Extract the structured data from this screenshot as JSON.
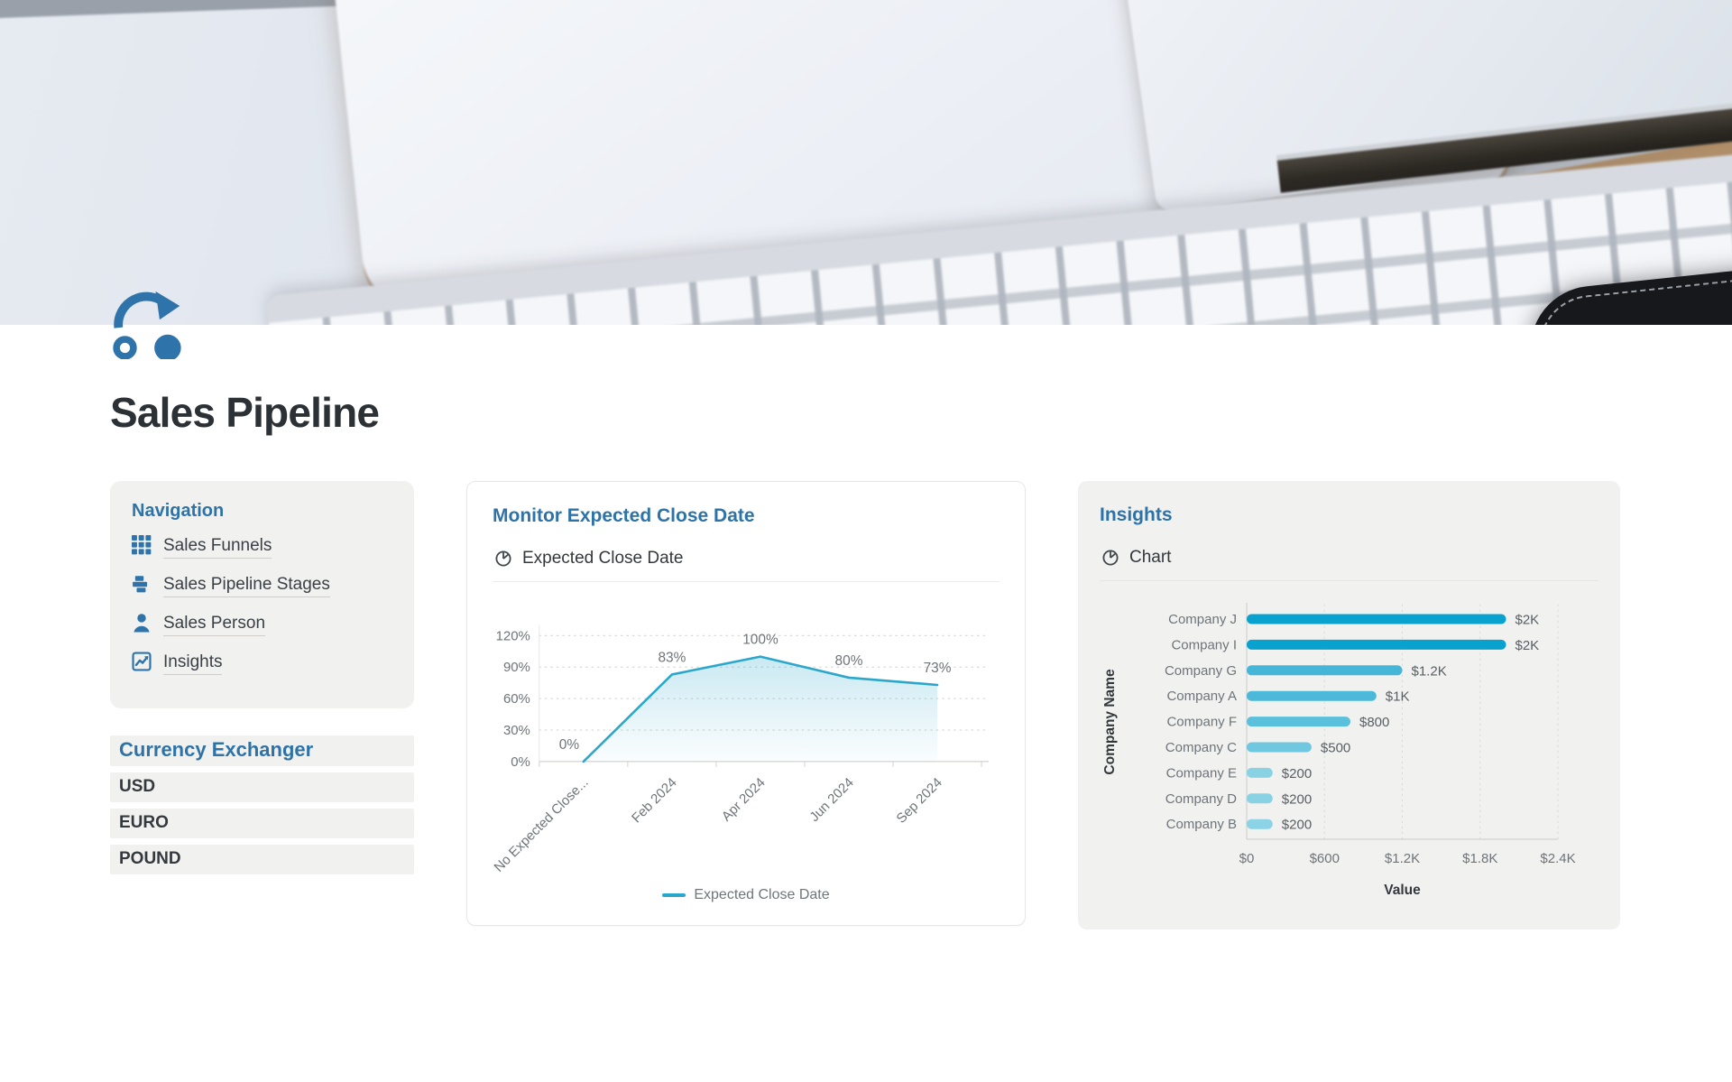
{
  "page": {
    "title": "Sales Pipeline",
    "icon": "redirect-arrow-icon"
  },
  "navigation": {
    "heading": "Navigation",
    "items": [
      {
        "label": "Sales Funnels",
        "icon": "grid-icon"
      },
      {
        "label": "Sales Pipeline Stages",
        "icon": "stages-icon"
      },
      {
        "label": "Sales Person",
        "icon": "person-icon"
      },
      {
        "label": "Insights",
        "icon": "insights-icon"
      }
    ]
  },
  "currency": {
    "heading": "Currency Exchanger",
    "items": [
      "USD",
      "EURO",
      "POUND"
    ]
  },
  "close_date_card": {
    "title": "Monitor Expected Close Date",
    "view_label": "Expected Close Date",
    "view_icon": "pie-chart-icon"
  },
  "insights_card": {
    "title": "Insights",
    "view_label": "Chart",
    "view_icon": "pie-chart-icon"
  },
  "colors": {
    "accent_blue": "#2E73A8",
    "icon_blue": "#2E74AB",
    "line_series": "#2BA7CC",
    "card_gray": "#F1F1EF",
    "bar_scale_max": "#09A2CE",
    "bar_scale_min": "#8CD4E5"
  },
  "chart_data": [
    {
      "type": "line",
      "title": "Monitor Expected Close Date",
      "categories": [
        "No Expected Close...",
        "Feb 2024",
        "Apr 2024",
        "Jun 2024",
        "Sep 2024"
      ],
      "series": [
        {
          "name": "Expected Close Date",
          "values": [
            0,
            83,
            100,
            80,
            73
          ]
        }
      ],
      "point_labels": [
        "0%",
        "83%",
        "100%",
        "80%",
        "73%"
      ],
      "ylim": [
        0,
        120
      ],
      "yticks": [
        "0%",
        "30%",
        "60%",
        "90%",
        "120%"
      ],
      "ytick_values": [
        0,
        30,
        60,
        90,
        120
      ],
      "grid": "dotted-horizontal",
      "legend": [
        "Expected Close Date"
      ],
      "legend_position": "bottom",
      "line_color": "#2BA7CC",
      "area_fill": true,
      "x_label_rotation": -45
    },
    {
      "type": "bar",
      "orientation": "horizontal",
      "categories": [
        "Company J",
        "Company I",
        "Company G",
        "Company A",
        "Company F",
        "Company C",
        "Company E",
        "Company D",
        "Company B"
      ],
      "values": [
        2000,
        2000,
        1200,
        1000,
        800,
        500,
        200,
        200,
        200
      ],
      "value_labels": [
        "$2K",
        "$2K",
        "$1.2K",
        "$1K",
        "$800",
        "$500",
        "$200",
        "$200",
        "$200"
      ],
      "bar_colors": [
        "#09A2CE",
        "#09A2CE",
        "#45B6D8",
        "#4CB9D9",
        "#5BC0DB",
        "#6FC8DF",
        "#89D2E4",
        "#89D2E4",
        "#8CD4E5"
      ],
      "xlim": [
        0,
        2400
      ],
      "xticks": [
        "$0",
        "$600",
        "$1.2K",
        "$1.8K",
        "$2.4K"
      ],
      "xtick_values": [
        0,
        600,
        1200,
        1800,
        2400
      ],
      "xlabel": "Value",
      "ylabel": "Company Name",
      "grid": "dotted-vertical"
    }
  ]
}
